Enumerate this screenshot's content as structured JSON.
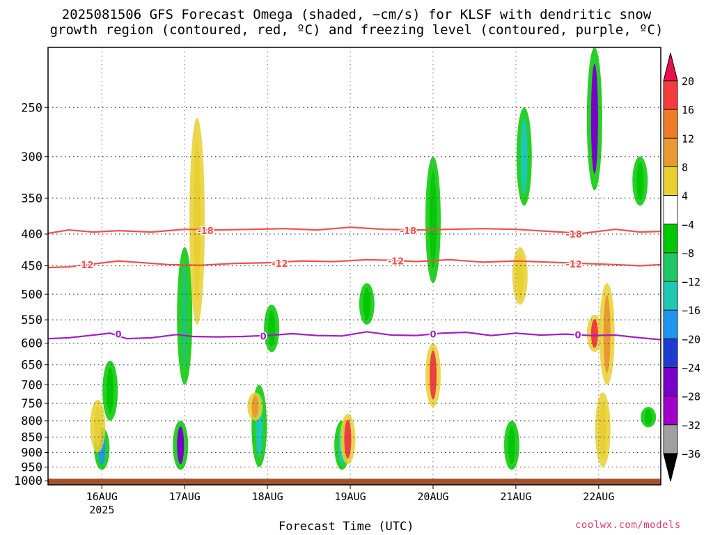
{
  "header": {
    "title_line1": "2025081506 GFS Forecast Omega (shaded, −cm/s) for KLSF with dendritic snow",
    "title_line2": "growth region (contoured, red, ºC) and freezing level (contoured, purple, ºC)"
  },
  "footer": {
    "credit": "coolwx.com/models"
  },
  "chart_data": {
    "type": "heatmap",
    "xlabel": "Forecast Time (UTC)",
    "x_ticks": [
      "16AUG",
      "17AUG",
      "18AUG",
      "19AUG",
      "20AUG",
      "21AUG",
      "22AUG"
    ],
    "x_year_label": "2025",
    "x_range_days": [
      15.35,
      22.75
    ],
    "y_scale": "log-pressure",
    "y_ticks": [
      250,
      300,
      350,
      400,
      450,
      500,
      550,
      600,
      650,
      700,
      750,
      800,
      850,
      900,
      950,
      1000
    ],
    "y_range_hpa": [
      200,
      1015
    ],
    "grid": true,
    "colorbar": {
      "labels": [
        "20",
        "16",
        "12",
        "8",
        "4",
        "−4",
        "−8",
        "−12",
        "−16",
        "−20",
        "−24",
        "−28",
        "−32",
        "−36"
      ],
      "colors": [
        "#e8104a",
        "#f33c3c",
        "#ef7c24",
        "#e89a30",
        "#e8d030",
        "#ffffff",
        "#00c800",
        "#1ec864",
        "#1ec8b4",
        "#1e96f0",
        "#1e3cd2",
        "#7800c8",
        "#a000c8",
        "#a0a0a0",
        "#000000"
      ]
    },
    "isotherms": [
      {
        "label": "-18",
        "color": "#f0504a",
        "points": [
          [
            15.35,
            399
          ],
          [
            15.6,
            394
          ],
          [
            15.9,
            397
          ],
          [
            16.2,
            395
          ],
          [
            16.6,
            397
          ],
          [
            17.0,
            393
          ],
          [
            17.4,
            394
          ],
          [
            17.8,
            393
          ],
          [
            18.2,
            392
          ],
          [
            18.6,
            394
          ],
          [
            19.0,
            390
          ],
          [
            19.4,
            393
          ],
          [
            19.8,
            394
          ],
          [
            20.2,
            393
          ],
          [
            20.6,
            392
          ],
          [
            21.0,
            393
          ],
          [
            21.4,
            396
          ],
          [
            21.8,
            399
          ],
          [
            22.2,
            393
          ],
          [
            22.5,
            397
          ],
          [
            22.75,
            396
          ]
        ],
        "label_x": [
          17.25,
          19.7,
          21.7
        ]
      },
      {
        "label": "-12",
        "color": "#f0504a",
        "points": [
          [
            15.35,
            453
          ],
          [
            15.6,
            452
          ],
          [
            15.9,
            447
          ],
          [
            16.2,
            442
          ],
          [
            16.5,
            445
          ],
          [
            16.8,
            448
          ],
          [
            17.2,
            449
          ],
          [
            17.6,
            446
          ],
          [
            18.0,
            445
          ],
          [
            18.4,
            442
          ],
          [
            18.8,
            443
          ],
          [
            19.2,
            440
          ],
          [
            19.5,
            441
          ],
          [
            19.8,
            443
          ],
          [
            20.2,
            440
          ],
          [
            20.6,
            444
          ],
          [
            21.0,
            442
          ],
          [
            21.4,
            444
          ],
          [
            21.8,
            446
          ],
          [
            22.2,
            448
          ],
          [
            22.5,
            450
          ],
          [
            22.75,
            448
          ]
        ],
        "label_x": [
          15.8,
          18.15,
          19.55,
          21.7
        ]
      },
      {
        "label": "0",
        "color": "#a01ec8",
        "points": [
          [
            15.35,
            590
          ],
          [
            15.6,
            588
          ],
          [
            15.9,
            582
          ],
          [
            16.1,
            578
          ],
          [
            16.3,
            590
          ],
          [
            16.6,
            588
          ],
          [
            16.9,
            581
          ],
          [
            17.1,
            585
          ],
          [
            17.4,
            586
          ],
          [
            17.7,
            585
          ],
          [
            18.0,
            583
          ],
          [
            18.3,
            579
          ],
          [
            18.6,
            583
          ],
          [
            18.9,
            584
          ],
          [
            19.2,
            575
          ],
          [
            19.5,
            582
          ],
          [
            19.8,
            583
          ],
          [
            20.1,
            578
          ],
          [
            20.4,
            576
          ],
          [
            20.7,
            583
          ],
          [
            21.0,
            578
          ],
          [
            21.3,
            582
          ],
          [
            21.6,
            580
          ],
          [
            21.9,
            583
          ],
          [
            22.2,
            582
          ],
          [
            22.5,
            588
          ],
          [
            22.75,
            592
          ]
        ],
        "label_x": [
          16.2,
          17.95,
          20.0,
          21.75
        ]
      }
    ],
    "shaded_regions": [
      {
        "x": 16.0,
        "p1": 820,
        "p2": 960,
        "v": -20
      },
      {
        "x": 16.1,
        "p1": 640,
        "p2": 800,
        "v": -8
      },
      {
        "x": 15.95,
        "p1": 740,
        "p2": 900,
        "v": 6
      },
      {
        "x": 16.95,
        "p1": 800,
        "p2": 960,
        "v": -28
      },
      {
        "x": 17.0,
        "p1": 420,
        "p2": 700,
        "v": -10
      },
      {
        "x": 17.15,
        "p1": 260,
        "p2": 560,
        "v": 6
      },
      {
        "x": 17.9,
        "p1": 700,
        "p2": 950,
        "v": -14
      },
      {
        "x": 17.85,
        "p1": 720,
        "p2": 800,
        "v": 10
      },
      {
        "x": 18.05,
        "p1": 520,
        "p2": 620,
        "v": -8
      },
      {
        "x": 18.9,
        "p1": 800,
        "p2": 960,
        "v": -16
      },
      {
        "x": 18.97,
        "p1": 780,
        "p2": 940,
        "v": 18
      },
      {
        "x": 19.2,
        "p1": 480,
        "p2": 560,
        "v": -8
      },
      {
        "x": 20.0,
        "p1": 600,
        "p2": 760,
        "v": 16
      },
      {
        "x": 20.0,
        "p1": 300,
        "p2": 480,
        "v": -8
      },
      {
        "x": 20.95,
        "p1": 800,
        "p2": 960,
        "v": -8
      },
      {
        "x": 21.1,
        "p1": 250,
        "p2": 360,
        "v": -14
      },
      {
        "x": 21.05,
        "p1": 420,
        "p2": 520,
        "v": 6
      },
      {
        "x": 21.95,
        "p1": 200,
        "p2": 340,
        "v": -28
      },
      {
        "x": 21.95,
        "p1": 540,
        "p2": 620,
        "v": 16
      },
      {
        "x": 22.1,
        "p1": 480,
        "p2": 700,
        "v": 10
      },
      {
        "x": 22.05,
        "p1": 720,
        "p2": 950,
        "v": 6
      },
      {
        "x": 22.5,
        "p1": 300,
        "p2": 360,
        "v": -8
      },
      {
        "x": 22.6,
        "p1": 760,
        "p2": 820,
        "v": -8
      }
    ]
  }
}
